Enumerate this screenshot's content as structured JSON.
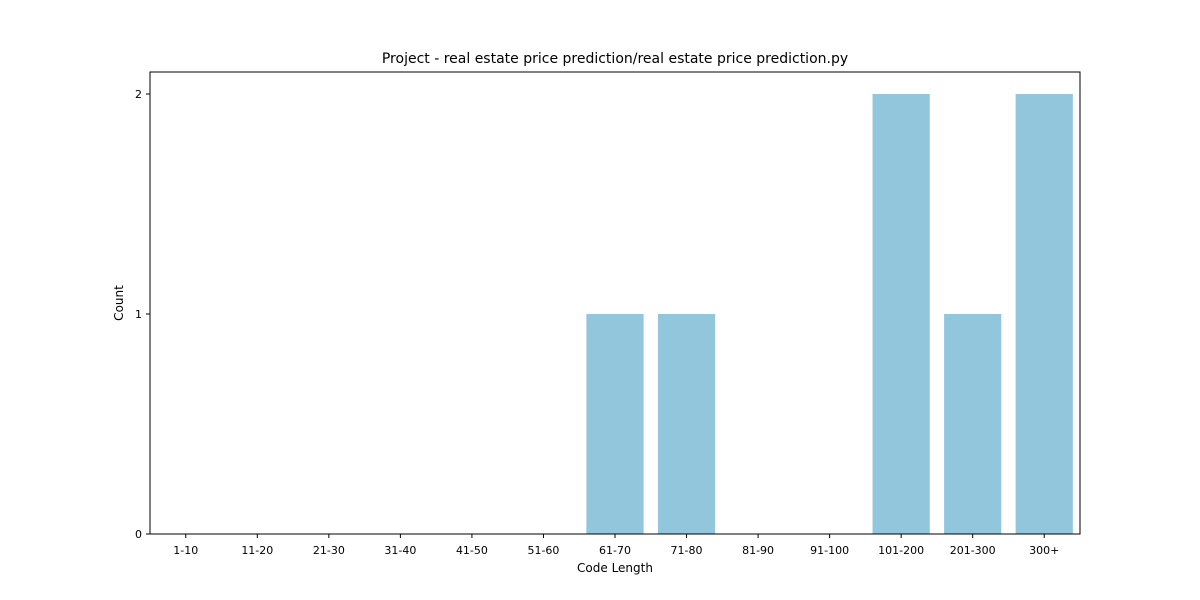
{
  "chart_data": {
    "type": "bar",
    "title": "Project - real estate price prediction/real estate price prediction.py",
    "xlabel": "Code Length",
    "ylabel": "Count",
    "categories": [
      "1-10",
      "11-20",
      "21-30",
      "31-40",
      "41-50",
      "51-60",
      "61-70",
      "71-80",
      "81-90",
      "91-100",
      "101-200",
      "201-300",
      "300+"
    ],
    "values": [
      0,
      0,
      0,
      0,
      0,
      0,
      1,
      1,
      0,
      0,
      2,
      1,
      2
    ],
    "ylim": [
      0,
      2.1
    ],
    "yticks": [
      0,
      1,
      2
    ],
    "bar_color": "#92c6dd",
    "grid": false,
    "legend": "none"
  }
}
